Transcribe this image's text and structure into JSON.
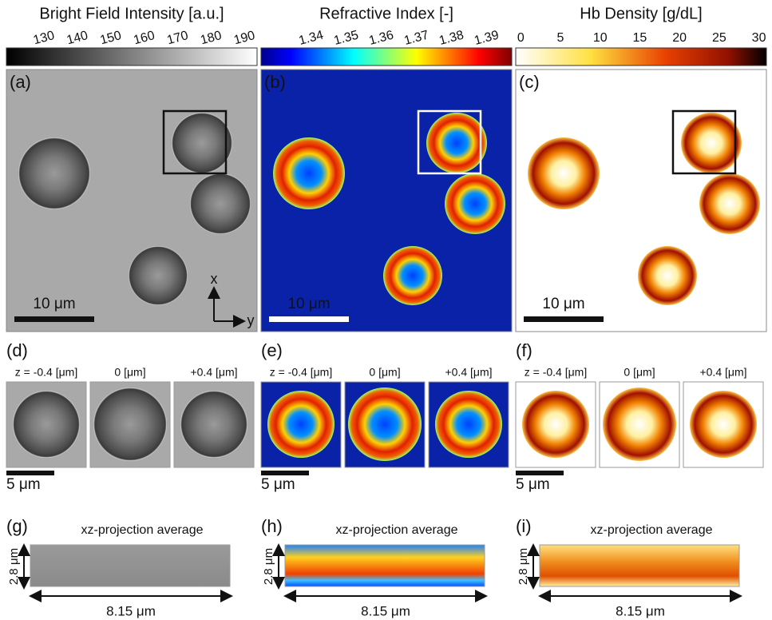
{
  "colorbars": [
    {
      "title": "Bright Field Intensity [a.u.]",
      "ticks": [
        "130",
        "140",
        "150",
        "160",
        "170",
        "180",
        "190"
      ]
    },
    {
      "title": "Refractive Index [-]",
      "ticks": [
        "1.34",
        "1.35",
        "1.36",
        "1.37",
        "1.38",
        "1.39"
      ]
    },
    {
      "title": "Hb Density [g/dL]",
      "ticks": [
        "0",
        "5",
        "10",
        "15",
        "20",
        "25",
        "30"
      ]
    }
  ],
  "panels": [
    {
      "label": "(a)",
      "scale_bar": "10 μm"
    },
    {
      "label": "(b)",
      "scale_bar": "10 μm"
    },
    {
      "label": "(c)",
      "scale_bar": "10 μm"
    }
  ],
  "axes": {
    "x": "x",
    "y": "y"
  },
  "slices": [
    {
      "label": "(d)",
      "z_labels": [
        "z = -0.4 [μm]",
        "0 [μm]",
        "+0.4 [μm]"
      ],
      "scale_bar": "5 μm"
    },
    {
      "label": "(e)",
      "z_labels": [
        "z = -0.4 [μm]",
        "0 [μm]",
        "+0.4 [μm]"
      ],
      "scale_bar": "5 μm"
    },
    {
      "label": "(f)",
      "z_labels": [
        "z = -0.4 [μm]",
        "0 [μm]",
        "+0.4 [μm]"
      ],
      "scale_bar": "5 μm"
    }
  ],
  "projections": [
    {
      "label": "(g)",
      "title": "xz-projection average",
      "height": "2.8 μm",
      "width": "8.15 μm"
    },
    {
      "label": "(h)",
      "title": "xz-projection average",
      "height": "2.8 μm",
      "width": "8.15 μm"
    },
    {
      "label": "(i)",
      "title": "xz-projection average",
      "height": "2.8 μm",
      "width": "8.15 μm"
    }
  ]
}
